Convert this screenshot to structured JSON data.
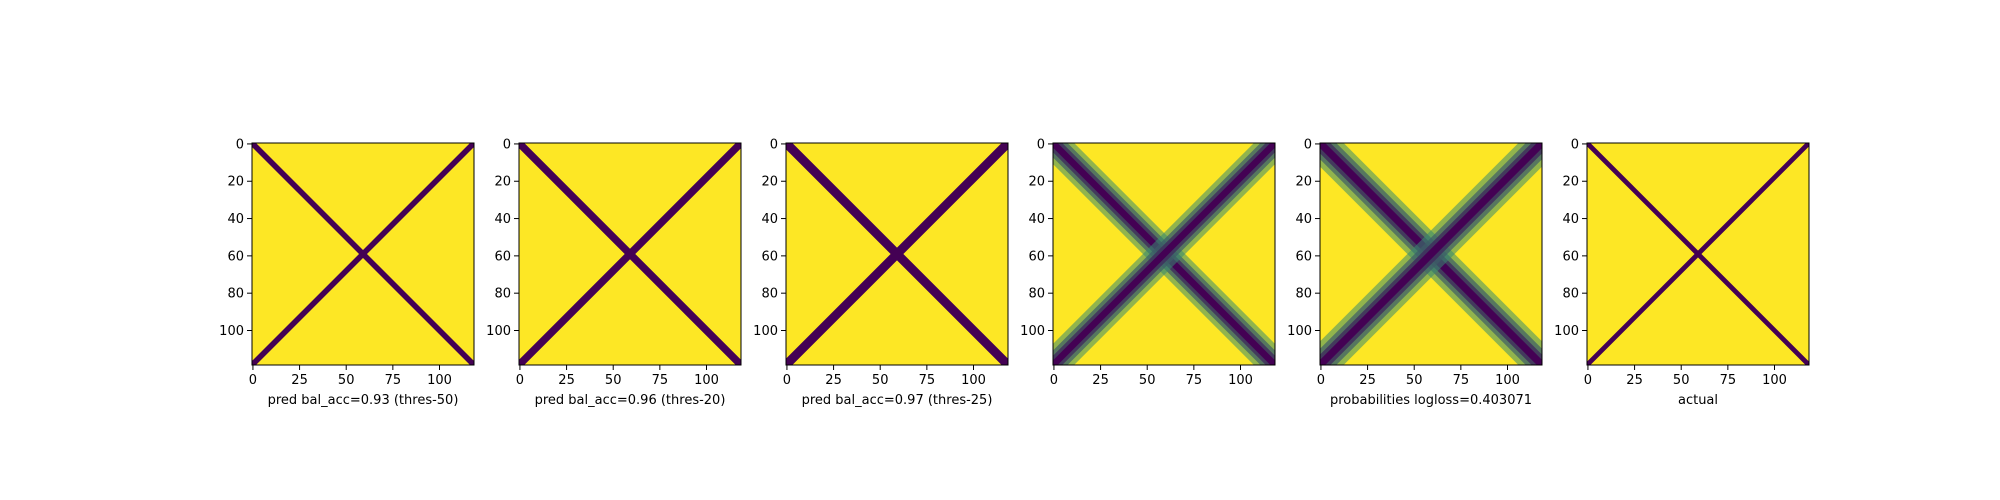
{
  "chart_data": [
    {
      "type": "heatmap",
      "style": "binary",
      "title": "",
      "xlabel": "pred bal_acc=0.93 (thres-50)",
      "ylabel": "",
      "size": 119,
      "xlim": [
        0,
        118
      ],
      "ylim": [
        118,
        0
      ],
      "x_ticks": [
        0,
        25,
        50,
        75,
        100
      ],
      "y_ticks": [
        0,
        20,
        40,
        60,
        80,
        100
      ],
      "pattern": "diagonal and anti-diagonal bands (class 0) on class-1 background",
      "band_halfwidth": 1.5,
      "colors": {
        "low": "#440154",
        "high": "#fde725"
      }
    },
    {
      "type": "heatmap",
      "style": "binary",
      "title": "",
      "xlabel": "pred bal_acc=0.96 (thres-20)",
      "ylabel": "",
      "size": 119,
      "xlim": [
        0,
        118
      ],
      "ylim": [
        118,
        0
      ],
      "x_ticks": [
        0,
        25,
        50,
        75,
        100
      ],
      "y_ticks": [
        0,
        20,
        40,
        60,
        80,
        100
      ],
      "pattern": "diagonal and anti-diagonal bands (class 0) on class-1 background",
      "band_halfwidth": 2.0,
      "colors": {
        "low": "#440154",
        "high": "#fde725"
      }
    },
    {
      "type": "heatmap",
      "style": "binary",
      "title": "",
      "xlabel": "pred bal_acc=0.97 (thres-25)",
      "ylabel": "",
      "size": 119,
      "xlim": [
        0,
        118
      ],
      "ylim": [
        118,
        0
      ],
      "x_ticks": [
        0,
        25,
        50,
        75,
        100
      ],
      "y_ticks": [
        0,
        20,
        40,
        60,
        80,
        100
      ],
      "pattern": "diagonal and anti-diagonal bands (class 0) on class-1 background",
      "band_halfwidth": 2.4,
      "colors": {
        "low": "#440154",
        "high": "#fde725"
      }
    },
    {
      "type": "heatmap",
      "style": "soft",
      "title": "",
      "xlabel": "",
      "ylabel": "",
      "size": 119,
      "xlim": [
        0,
        118
      ],
      "ylim": [
        118,
        0
      ],
      "x_ticks": [
        0,
        25,
        50,
        75,
        100
      ],
      "y_ticks": [
        0,
        20,
        40,
        60,
        80,
        100
      ],
      "pattern": "soft probability bands along diagonal and anti-diagonal",
      "band_halfwidth": 2.5,
      "colors": {
        "low": "#440154",
        "high": "#fde725"
      }
    },
    {
      "type": "heatmap",
      "style": "soft",
      "title": "",
      "xlabel": "probabilities logloss=0.403071",
      "ylabel": "",
      "size": 119,
      "xlim": [
        0,
        118
      ],
      "ylim": [
        118,
        0
      ],
      "x_ticks": [
        0,
        25,
        50,
        75,
        100
      ],
      "y_ticks": [
        0,
        20,
        40,
        60,
        80,
        100
      ],
      "pattern": "soft probability bands along diagonal and anti-diagonal",
      "band_halfwidth": 2.8,
      "colors": {
        "low": "#440154",
        "high": "#fde725"
      }
    },
    {
      "type": "heatmap",
      "style": "binary",
      "title": "",
      "xlabel": "actual",
      "ylabel": "",
      "size": 119,
      "xlim": [
        0,
        118
      ],
      "ylim": [
        118,
        0
      ],
      "x_ticks": [
        0,
        25,
        50,
        75,
        100
      ],
      "y_ticks": [
        0,
        20,
        40,
        60,
        80,
        100
      ],
      "pattern": "diagonal and anti-diagonal bands (class 0) on class-1 background",
      "band_halfwidth": 1.3,
      "colors": {
        "low": "#440154",
        "high": "#fde725"
      }
    }
  ]
}
